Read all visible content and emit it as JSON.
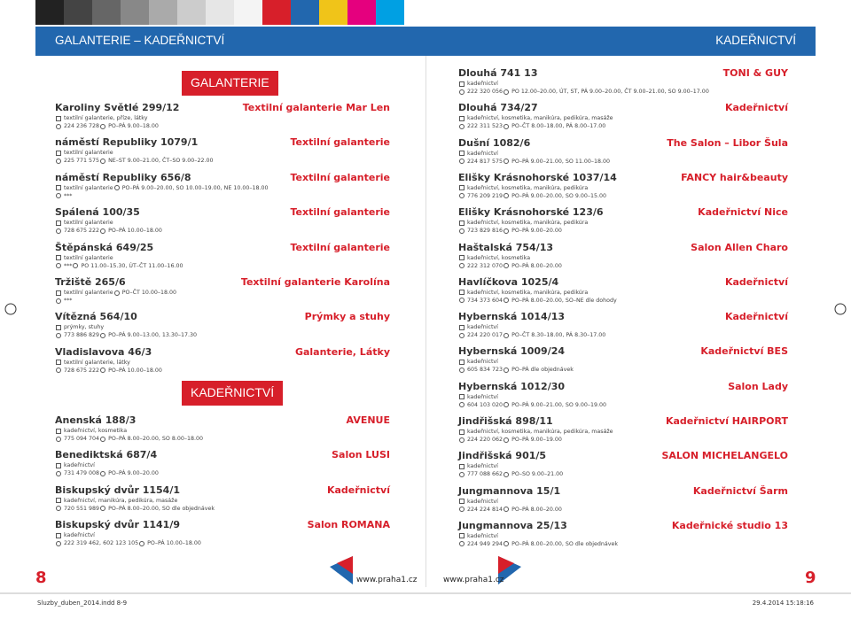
{
  "header": {
    "left_title": "GALANTERIE – KADEŘNICTVÍ",
    "right_title": "KADEŘNICTVÍ"
  },
  "left": {
    "sections": [
      {
        "title": "GALANTERIE",
        "entries": [
          {
            "address": "Karoliny Světlé 299/12",
            "name": "Textilní galanterie Mar Len",
            "lines": [
              [
                {
                  "icon": "tag",
                  "text": "textilní galanterie, příze, látky"
                }
              ],
              [
                {
                  "icon": "phone",
                  "text": "224 236 728"
                },
                {
                  "icon": "clock",
                  "text": "PO–PÁ 9.00–18.00"
                }
              ]
            ]
          },
          {
            "address": "náměstí Republiky 1079/1",
            "name": "Textilní galanterie",
            "lines": [
              [
                {
                  "icon": "tag",
                  "text": "textilní galanterie"
                }
              ],
              [
                {
                  "icon": "phone",
                  "text": "225 771 575"
                },
                {
                  "icon": "clock",
                  "text": "NE–ST 9.00–21.00, ČT–SO 9.00–22.00"
                }
              ]
            ]
          },
          {
            "address": "náměstí Republiky 656/8",
            "name": "Textilní galanterie",
            "lines": [
              [
                {
                  "icon": "tag",
                  "text": "textilní galanterie"
                },
                {
                  "icon": "clock",
                  "text": "PO–PÁ 9.00–20.00, SO 10.00–19.00, NE 10.00–18.00"
                }
              ],
              [
                {
                  "icon": "phone",
                  "text": "***"
                }
              ]
            ]
          },
          {
            "address": "Spálená 100/35",
            "name": "Textilní galanterie",
            "lines": [
              [
                {
                  "icon": "tag",
                  "text": "textilní galanterie"
                }
              ],
              [
                {
                  "icon": "phone",
                  "text": "728 675 222"
                },
                {
                  "icon": "clock",
                  "text": "PO–PÁ 10.00–18.00"
                }
              ]
            ]
          },
          {
            "address": "Štěpánská 649/25",
            "name": "Textilní galanterie",
            "lines": [
              [
                {
                  "icon": "tag",
                  "text": "textilní galanterie"
                }
              ],
              [
                {
                  "icon": "phone",
                  "text": "***"
                },
                {
                  "icon": "clock",
                  "text": "PO 11.00–15.30, ÚT–ČT 11.00–16.00"
                }
              ]
            ]
          },
          {
            "address": "Tržiště 265/6",
            "name": "Textilní galanterie Karolína",
            "lines": [
              [
                {
                  "icon": "tag",
                  "text": "textilní galanterie"
                },
                {
                  "icon": "clock",
                  "text": "PO–ČT 10.00–18.00"
                }
              ],
              [
                {
                  "icon": "phone",
                  "text": "***"
                }
              ]
            ]
          },
          {
            "address": "Vítězná 564/10",
            "name": "Prýmky a stuhy",
            "lines": [
              [
                {
                  "icon": "tag",
                  "text": "prýmky, stuhy"
                }
              ],
              [
                {
                  "icon": "phone",
                  "text": "773 886 829"
                },
                {
                  "icon": "clock",
                  "text": "PO–PÁ 9.00–13.00, 13.30–17.30"
                }
              ]
            ]
          },
          {
            "address": "Vladislavova 46/3",
            "name": "Galanterie, Látky",
            "lines": [
              [
                {
                  "icon": "tag",
                  "text": "textilní galanterie, látky"
                }
              ],
              [
                {
                  "icon": "phone",
                  "text": "728 675 222"
                },
                {
                  "icon": "clock",
                  "text": "PO–PÁ 10.00–18.00"
                }
              ]
            ]
          }
        ]
      },
      {
        "title": "KADEŘNICTVÍ",
        "entries": [
          {
            "address": "Anenská 188/3",
            "name": "AVENUE",
            "lines": [
              [
                {
                  "icon": "tag",
                  "text": "kadeřnictví, kosmetika"
                }
              ],
              [
                {
                  "icon": "phone",
                  "text": "775 094 704"
                },
                {
                  "icon": "clock",
                  "text": "PO–PÁ 8.00–20.00, SO 8.00–18.00"
                }
              ]
            ]
          },
          {
            "address": "Benediktská 687/4",
            "name": "Salon LUSI",
            "lines": [
              [
                {
                  "icon": "tag",
                  "text": "kadeřnictví"
                }
              ],
              [
                {
                  "icon": "phone",
                  "text": "731 479 008"
                },
                {
                  "icon": "clock",
                  "text": "PO–PÁ 9.00–20.00"
                }
              ]
            ]
          },
          {
            "address": "Biskupský dvůr 1154/1",
            "name": "Kadeřnictví",
            "lines": [
              [
                {
                  "icon": "tag",
                  "text": "kadeřnictví, manikúra, pedikúra, masáže"
                }
              ],
              [
                {
                  "icon": "phone",
                  "text": "720 551 989"
                },
                {
                  "icon": "clock",
                  "text": "PO–PÁ 8.00–20.00, SO dle objednávek"
                }
              ]
            ]
          },
          {
            "address": "Biskupský dvůr 1141/9",
            "name": "Salon ROMANA",
            "lines": [
              [
                {
                  "icon": "tag",
                  "text": "kadeřnictví"
                }
              ],
              [
                {
                  "icon": "phone",
                  "text": "222 319 462, 602 123 105"
                },
                {
                  "icon": "clock",
                  "text": "PO–PÁ 10.00–18.00"
                }
              ]
            ]
          }
        ]
      }
    ]
  },
  "right": {
    "entries": [
      {
        "address": "Dlouhá 741 13",
        "name": "TONI & GUY",
        "lines": [
          [
            {
              "icon": "tag",
              "text": "kadeřnictví"
            }
          ],
          [
            {
              "icon": "phone",
              "text": "222 320 056"
            },
            {
              "icon": "clock",
              "text": "PO 12.00–20.00, ÚT, ST, PÁ 9.00–20.00, ČT 9.00–21.00, SO 9.00–17.00"
            }
          ]
        ]
      },
      {
        "address": "Dlouhá 734/27",
        "name": "Kadeřnictví",
        "lines": [
          [
            {
              "icon": "tag",
              "text": "kadeřnictví, kosmetika, manikúra, pedikúra, masáže"
            }
          ],
          [
            {
              "icon": "phone",
              "text": "222 311 523"
            },
            {
              "icon": "clock",
              "text": "PO–ČT 8.00–18.00, PÁ 8.00–17.00"
            }
          ]
        ]
      },
      {
        "address": "Dušní 1082/6",
        "name": "The Salon – Libor Šula",
        "lines": [
          [
            {
              "icon": "tag",
              "text": "kadeřnictví"
            }
          ],
          [
            {
              "icon": "phone",
              "text": "224 817 575"
            },
            {
              "icon": "clock",
              "text": "PO–PÁ 9.00–21.00, SO 11.00–18.00"
            }
          ]
        ]
      },
      {
        "address": "Elišky Krásnohorské 1037/14",
        "name": "FANCY hair&beauty",
        "lines": [
          [
            {
              "icon": "tag",
              "text": "kadeřnictví, kosmetika, manikúra, pedikúra"
            }
          ],
          [
            {
              "icon": "phone",
              "text": "776 209 219"
            },
            {
              "icon": "clock",
              "text": "PO–PÁ 9.00–20.00, SO 9.00–15.00"
            }
          ]
        ]
      },
      {
        "address": "Elišky Krásnohorské 123/6",
        "name": "Kadeřnictví Nice",
        "lines": [
          [
            {
              "icon": "tag",
              "text": "kadeřnictví, kosmetika, manikúra, pedikúra"
            }
          ],
          [
            {
              "icon": "phone",
              "text": "723 829 816"
            },
            {
              "icon": "clock",
              "text": "PO–PÁ 9.00–20.00"
            }
          ]
        ]
      },
      {
        "address": "Haštalská 754/13",
        "name": "Salon Allen Charo",
        "lines": [
          [
            {
              "icon": "tag",
              "text": "kadeřnictví, kosmetika"
            }
          ],
          [
            {
              "icon": "phone",
              "text": "222 312 070"
            },
            {
              "icon": "clock",
              "text": "PO–PÁ 8.00–20.00"
            }
          ]
        ]
      },
      {
        "address": "Havlíčkova 1025/4",
        "name": "Kadeřnictví",
        "lines": [
          [
            {
              "icon": "tag",
              "text": "kadeřnictví, kosmetika, manikúra, pedikúra"
            }
          ],
          [
            {
              "icon": "phone",
              "text": "734 373 604"
            },
            {
              "icon": "clock",
              "text": "PO–PÁ 8.00–20.00, SO–NE dle dohody"
            }
          ]
        ]
      },
      {
        "address": "Hybernská 1014/13",
        "name": "Kadeřnictví",
        "lines": [
          [
            {
              "icon": "tag",
              "text": "kadeřnictví"
            }
          ],
          [
            {
              "icon": "phone",
              "text": "224 220 017"
            },
            {
              "icon": "clock",
              "text": "PO–ČT 8.30–18.00, PÁ 8.30–17.00"
            }
          ]
        ]
      },
      {
        "address": "Hybernská 1009/24",
        "name": "Kadeřnictví BES",
        "lines": [
          [
            {
              "icon": "tag",
              "text": "kadeřnictví"
            }
          ],
          [
            {
              "icon": "phone",
              "text": "605 834 723"
            },
            {
              "icon": "clock",
              "text": "PO–PÁ dle objednávek"
            }
          ]
        ]
      },
      {
        "address": "Hybernská 1012/30",
        "name": "Salon Lady",
        "lines": [
          [
            {
              "icon": "tag",
              "text": "kadeřnictví"
            }
          ],
          [
            {
              "icon": "phone",
              "text": "604 103 020"
            },
            {
              "icon": "clock",
              "text": "PO–PÁ 9.00–21.00, SO 9.00–19.00"
            }
          ]
        ]
      },
      {
        "address": "Jindřišská 898/11",
        "name": "Kadeřnictví HAIRPORT",
        "lines": [
          [
            {
              "icon": "tag",
              "text": "kadeřnictví, kosmetika, manikúra, pedikúra, masáže"
            }
          ],
          [
            {
              "icon": "phone",
              "text": "224 220 062"
            },
            {
              "icon": "clock",
              "text": "PO–PÁ 9.00–19.00"
            }
          ]
        ]
      },
      {
        "address": "Jindřišská 901/5",
        "name": "SALON MICHELANGELO",
        "lines": [
          [
            {
              "icon": "tag",
              "text": "kadeřnictví"
            }
          ],
          [
            {
              "icon": "phone",
              "text": "777 088 662"
            },
            {
              "icon": "clock",
              "text": "PO–SO 9.00–21.00"
            }
          ]
        ]
      },
      {
        "address": "Jungmannova 15/1",
        "name": "Kadeřnictví Šarm",
        "lines": [
          [
            {
              "icon": "tag",
              "text": "kadeřnictví"
            }
          ],
          [
            {
              "icon": "phone",
              "text": "224 224 814"
            },
            {
              "icon": "clock",
              "text": "PO–PÁ 8.00–20.00"
            }
          ]
        ]
      },
      {
        "address": "Jungmannova 25/13",
        "name": "Kadeřnické studio 13",
        "lines": [
          [
            {
              "icon": "tag",
              "text": "kadeřnictví"
            }
          ],
          [
            {
              "icon": "phone",
              "text": "224 949 294"
            },
            {
              "icon": "clock",
              "text": "PO–PÁ 8.00–20.00, SO dle objednávek"
            }
          ]
        ]
      }
    ]
  },
  "footer": {
    "left_page": "8",
    "right_page": "9",
    "left_url": "www.praha1.cz",
    "right_url": "www.praha1.cz",
    "file": "Sluzby_duben_2014.indd 8-9",
    "timestamp": "29.4.2014 15:18:16"
  }
}
